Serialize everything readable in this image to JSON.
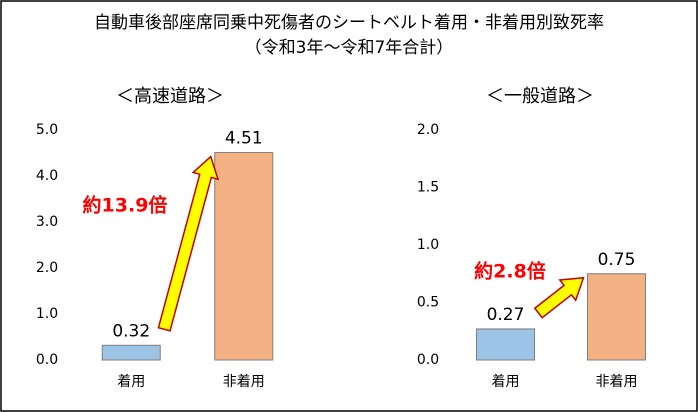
{
  "title": [
    "自動車後部座席同乗中死傷者のシートベルト着用・非着用別致死率",
    "（令和3年～令和7年合計）"
  ],
  "chart_data": [
    {
      "type": "bar",
      "subtitle": "＜高速道路＞",
      "categories": [
        "着用",
        "非着用"
      ],
      "values": [
        0.32,
        4.51
      ],
      "colors": [
        "#9dc3e6",
        "#f4b183"
      ],
      "ylim": [
        0,
        5
      ],
      "yticks": [
        {
          "value": 0,
          "label": "0.0"
        },
        {
          "value": 1,
          "label": "1.0"
        },
        {
          "value": 2,
          "label": "2.0"
        },
        {
          "value": 3,
          "label": "3.0"
        },
        {
          "value": 4,
          "label": "4.0"
        },
        {
          "value": 5,
          "label": "5.0"
        }
      ],
      "annotation": "約13.9倍"
    },
    {
      "type": "bar",
      "subtitle": "＜一般道路＞",
      "categories": [
        "着用",
        "非着用"
      ],
      "values": [
        0.27,
        0.75
      ],
      "colors": [
        "#9dc3e6",
        "#f4b183"
      ],
      "ylim": [
        0,
        2
      ],
      "yticks": [
        {
          "value": 0,
          "label": "0.0"
        },
        {
          "value": 0.5,
          "label": "0.5"
        },
        {
          "value": 1,
          "label": "1.0"
        },
        {
          "value": 1.5,
          "label": "1.5"
        },
        {
          "value": 2,
          "label": "2.0"
        }
      ],
      "annotation": "約2.8倍"
    }
  ]
}
